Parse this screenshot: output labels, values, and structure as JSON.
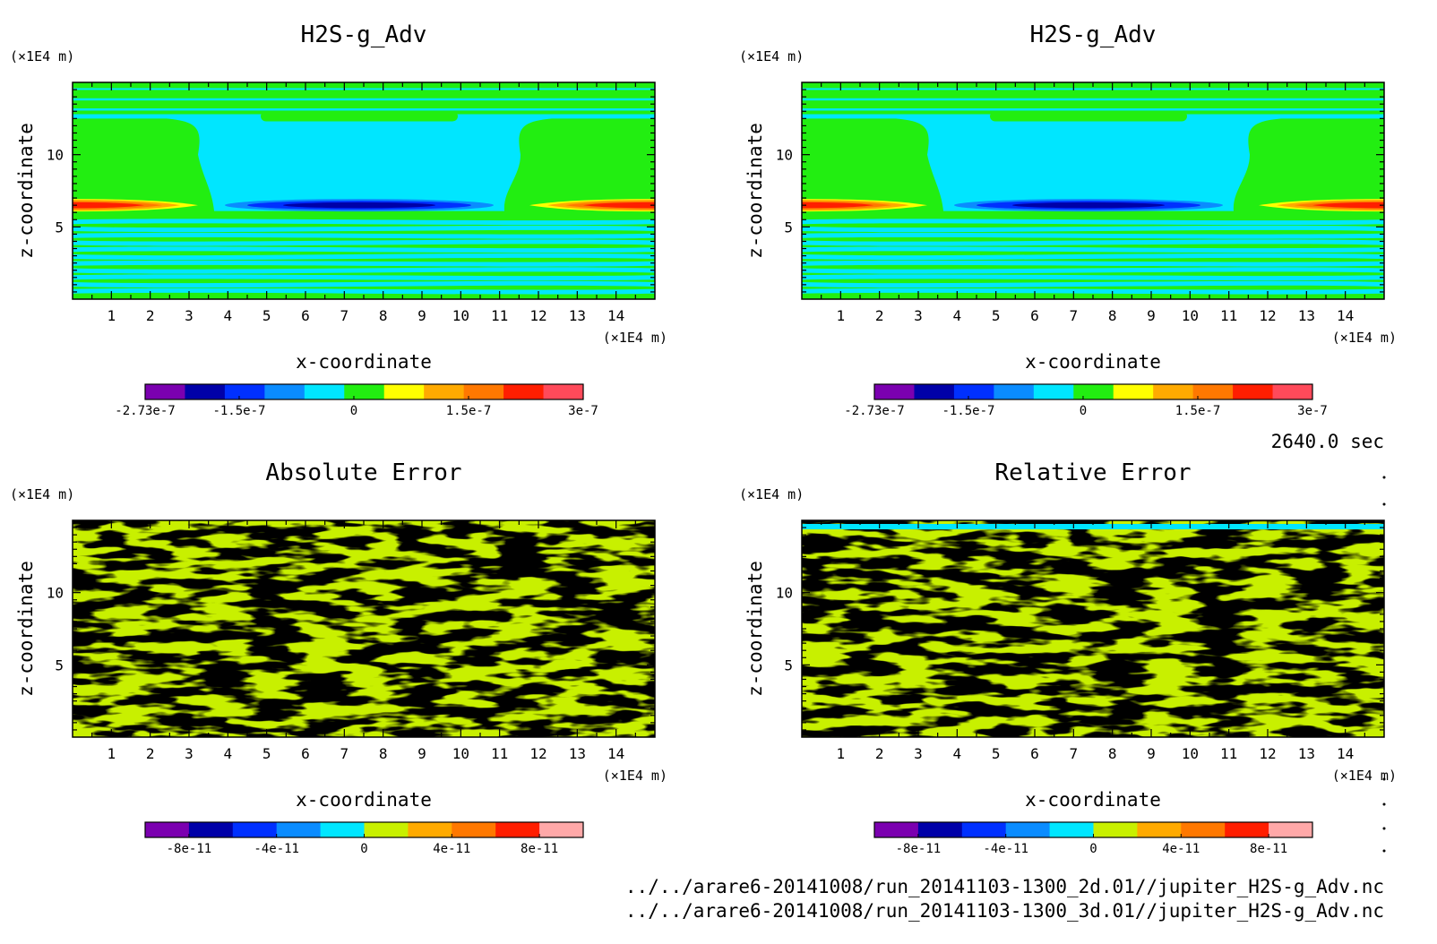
{
  "time_label": "2640.0 sec",
  "files": [
    "../../arare6-20141008/run_20141103-1300_2d.01//jupiter_H2S-g_Adv.nc",
    "../../arare6-20141008/run_20141103-1300_3d.01//jupiter_H2S-g_Adv.nc"
  ],
  "chart_data": [
    {
      "type": "heatmap",
      "title": "H2S-g_Adv",
      "xlabel": "x-coordinate",
      "ylabel": "z-coordinate",
      "x_unit": "(×1E4 m)",
      "y_unit": "(×1E4 m)",
      "xlim": [
        0,
        15
      ],
      "ylim": [
        0,
        15
      ],
      "x_ticks": [
        1,
        2,
        3,
        4,
        5,
        6,
        7,
        8,
        9,
        10,
        11,
        12,
        13,
        14
      ],
      "y_ticks": [
        5,
        10
      ],
      "field": "banded",
      "colorbar": {
        "colors": [
          "#7b00b0",
          "#0000a8",
          "#0030ff",
          "#0a8cff",
          "#00e6ff",
          "#22ee11",
          "#ffff00",
          "#ffaa00",
          "#ff7800",
          "#ff1e00",
          "#ff4a5a"
        ],
        "tick_labels": [
          "-2.73e-7",
          "-1.5e-7",
          "0",
          "1.5e-7",
          "3e-7"
        ]
      }
    },
    {
      "type": "heatmap",
      "title": "H2S-g_Adv",
      "xlabel": "x-coordinate",
      "ylabel": "z-coordinate",
      "x_unit": "(×1E4 m)",
      "y_unit": "(×1E4 m)",
      "xlim": [
        0,
        15
      ],
      "ylim": [
        0,
        15
      ],
      "x_ticks": [
        1,
        2,
        3,
        4,
        5,
        6,
        7,
        8,
        9,
        10,
        11,
        12,
        13,
        14
      ],
      "y_ticks": [
        5,
        10
      ],
      "field": "banded",
      "colorbar": {
        "colors": [
          "#7b00b0",
          "#0000a8",
          "#0030ff",
          "#0a8cff",
          "#00e6ff",
          "#22ee11",
          "#ffff00",
          "#ffaa00",
          "#ff7800",
          "#ff1e00",
          "#ff4a5a"
        ],
        "tick_labels": [
          "-2.73e-7",
          "-1.5e-7",
          "0",
          "1.5e-7",
          "3e-7"
        ]
      }
    },
    {
      "type": "heatmap",
      "title": "Absolute Error",
      "xlabel": "x-coordinate",
      "ylabel": "z-coordinate",
      "x_unit": "(×1E4 m)",
      "y_unit": "(×1E4 m)",
      "xlim": [
        0,
        15
      ],
      "ylim": [
        0,
        15
      ],
      "x_ticks": [
        1,
        2,
        3,
        4,
        5,
        6,
        7,
        8,
        9,
        10,
        11,
        12,
        13,
        14
      ],
      "y_ticks": [
        5,
        10
      ],
      "field": "noise",
      "colorbar": {
        "colors": [
          "#7b00b0",
          "#0000a8",
          "#0030ff",
          "#0a8cff",
          "#00e6ff",
          "#c8f000",
          "#ffaa00",
          "#ff7800",
          "#ff1e00",
          "#ffa8a8"
        ],
        "tick_labels": [
          "-8e-11",
          "-4e-11",
          "0",
          "4e-11",
          "8e-11"
        ]
      }
    },
    {
      "type": "heatmap",
      "title": "Relative Error",
      "xlabel": "x-coordinate",
      "ylabel": "z-coordinate",
      "x_unit": "(×1E4 m)",
      "y_unit": "(×1E4 m)",
      "xlim": [
        0,
        15
      ],
      "ylim": [
        0,
        15
      ],
      "x_ticks": [
        1,
        2,
        3,
        4,
        5,
        6,
        7,
        8,
        9,
        10,
        11,
        12,
        13,
        14
      ],
      "y_ticks": [
        5,
        10
      ],
      "field": "noise",
      "colorbar": {
        "colors": [
          "#7b00b0",
          "#0000a8",
          "#0030ff",
          "#0a8cff",
          "#00e6ff",
          "#c8f000",
          "#ffaa00",
          "#ff7800",
          "#ff1e00",
          "#ffa8a8"
        ],
        "tick_labels": [
          "-8e-11",
          "-4e-11",
          "0",
          "4e-11",
          "8e-11"
        ]
      }
    }
  ]
}
